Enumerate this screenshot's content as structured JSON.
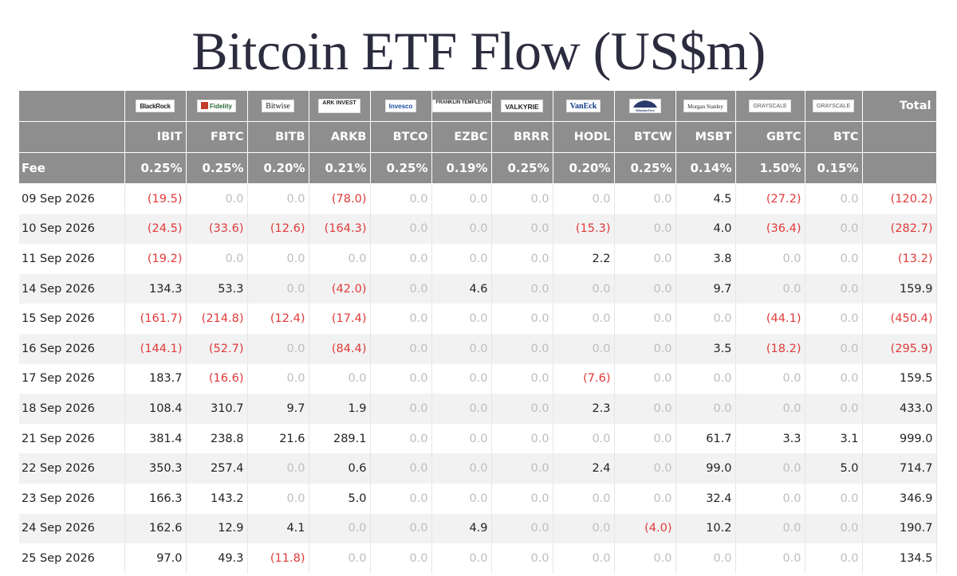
{
  "title": "Bitcoin ETF Flow (US$m)",
  "header": {
    "total_label": "Total",
    "fee_label": "Fee",
    "issuers": [
      {
        "logo": "BlackRock",
        "icon": "blackrock-logo",
        "ticker": "IBIT",
        "fee": "0.25%"
      },
      {
        "logo": "Fidelity",
        "icon": "fidelity-logo",
        "ticker": "FBTC",
        "fee": "0.25%"
      },
      {
        "logo": "Bitwise",
        "icon": "bitwise-logo",
        "ticker": "BITB",
        "fee": "0.20%"
      },
      {
        "logo": "ARK INVEST",
        "icon": "ark-logo",
        "ticker": "ARKB",
        "fee": "0.21%"
      },
      {
        "logo": "Invesco",
        "icon": "invesco-logo",
        "ticker": "BTCO",
        "fee": "0.25%"
      },
      {
        "logo": "FRANKLIN TEMPLETON",
        "icon": "franklin-templeton-logo",
        "ticker": "EZBC",
        "fee": "0.19%"
      },
      {
        "logo": "VALKYRIE",
        "icon": "valkyrie-logo",
        "ticker": "BRRR",
        "fee": "0.25%"
      },
      {
        "logo": "VanEck",
        "icon": "vaneck-logo",
        "ticker": "HODL",
        "fee": "0.20%"
      },
      {
        "logo": "WisdomTree",
        "icon": "wisdomtree-logo",
        "ticker": "BTCW",
        "fee": "0.25%"
      },
      {
        "logo": "Morgan Stanley",
        "icon": "morgan-stanley-logo",
        "ticker": "MSBT",
        "fee": "0.14%"
      },
      {
        "logo": "GRAYSCALE",
        "icon": "grayscale-logo",
        "ticker": "GBTC",
        "fee": "1.50%"
      },
      {
        "logo": "GRAYSCALE",
        "icon": "grayscale-logo",
        "ticker": "BTC",
        "fee": "0.15%"
      }
    ]
  },
  "rows": [
    {
      "date": "09 Sep 2026",
      "values": [
        "(19.5)",
        "0.0",
        "0.0",
        "(78.0)",
        "0.0",
        "0.0",
        "0.0",
        "0.0",
        "0.0",
        "4.5",
        "(27.2)",
        "0.0"
      ],
      "total": "(120.2)"
    },
    {
      "date": "10 Sep 2026",
      "values": [
        "(24.5)",
        "(33.6)",
        "(12.6)",
        "(164.3)",
        "0.0",
        "0.0",
        "0.0",
        "(15.3)",
        "0.0",
        "4.0",
        "(36.4)",
        "0.0"
      ],
      "total": "(282.7)"
    },
    {
      "date": "11 Sep 2026",
      "values": [
        "(19.2)",
        "0.0",
        "0.0",
        "0.0",
        "0.0",
        "0.0",
        "0.0",
        "2.2",
        "0.0",
        "3.8",
        "0.0",
        "0.0"
      ],
      "total": "(13.2)"
    },
    {
      "date": "14 Sep 2026",
      "values": [
        "134.3",
        "53.3",
        "0.0",
        "(42.0)",
        "0.0",
        "4.6",
        "0.0",
        "0.0",
        "0.0",
        "9.7",
        "0.0",
        "0.0"
      ],
      "total": "159.9"
    },
    {
      "date": "15 Sep 2026",
      "values": [
        "(161.7)",
        "(214.8)",
        "(12.4)",
        "(17.4)",
        "0.0",
        "0.0",
        "0.0",
        "0.0",
        "0.0",
        "0.0",
        "(44.1)",
        "0.0"
      ],
      "total": "(450.4)"
    },
    {
      "date": "16 Sep 2026",
      "values": [
        "(144.1)",
        "(52.7)",
        "0.0",
        "(84.4)",
        "0.0",
        "0.0",
        "0.0",
        "0.0",
        "0.0",
        "3.5",
        "(18.2)",
        "0.0"
      ],
      "total": "(295.9)"
    },
    {
      "date": "17 Sep 2026",
      "values": [
        "183.7",
        "(16.6)",
        "0.0",
        "0.0",
        "0.0",
        "0.0",
        "0.0",
        "(7.6)",
        "0.0",
        "0.0",
        "0.0",
        "0.0"
      ],
      "total": "159.5"
    },
    {
      "date": "18 Sep 2026",
      "values": [
        "108.4",
        "310.7",
        "9.7",
        "1.9",
        "0.0",
        "0.0",
        "0.0",
        "2.3",
        "0.0",
        "0.0",
        "0.0",
        "0.0"
      ],
      "total": "433.0"
    },
    {
      "date": "21 Sep 2026",
      "values": [
        "381.4",
        "238.8",
        "21.6",
        "289.1",
        "0.0",
        "0.0",
        "0.0",
        "0.0",
        "0.0",
        "61.7",
        "3.3",
        "3.1"
      ],
      "total": "999.0"
    },
    {
      "date": "22 Sep 2026",
      "values": [
        "350.3",
        "257.4",
        "0.0",
        "0.6",
        "0.0",
        "0.0",
        "0.0",
        "2.4",
        "0.0",
        "99.0",
        "0.0",
        "5.0"
      ],
      "total": "714.7"
    },
    {
      "date": "23 Sep 2026",
      "values": [
        "166.3",
        "143.2",
        "0.0",
        "5.0",
        "0.0",
        "0.0",
        "0.0",
        "0.0",
        "0.0",
        "32.4",
        "0.0",
        "0.0"
      ],
      "total": "346.9"
    },
    {
      "date": "24 Sep 2026",
      "values": [
        "162.6",
        "12.9",
        "4.1",
        "0.0",
        "0.0",
        "4.9",
        "0.0",
        "0.0",
        "(4.0)",
        "10.2",
        "0.0",
        "0.0"
      ],
      "total": "190.7"
    },
    {
      "date": "25 Sep 2026",
      "values": [
        "97.0",
        "49.3",
        "(11.8)",
        "0.0",
        "0.0",
        "0.0",
        "0.0",
        "0.0",
        "0.0",
        "0.0",
        "0.0",
        "0.0"
      ],
      "total": "134.5"
    }
  ],
  "colors": {
    "header_bg": "#8e8e8e",
    "negative": "#e03a3a",
    "zero": "#bdbdbd",
    "positive": "#222222",
    "stripe": "#f2f2f2",
    "title": "#2c2c3f"
  }
}
